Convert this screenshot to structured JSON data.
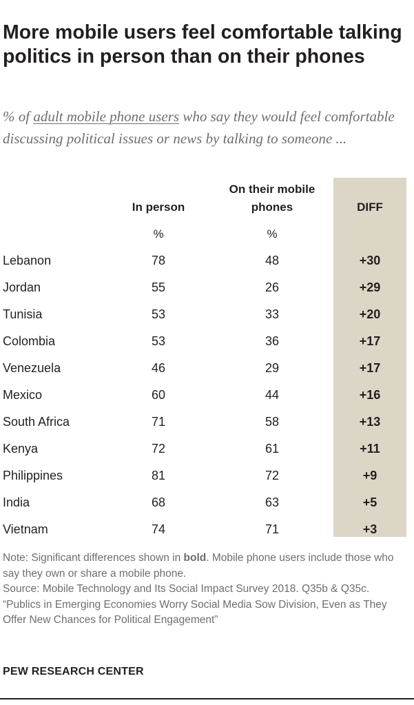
{
  "header": {
    "title": "More mobile users feel comfortable talking politics in person than on their phones",
    "subtitle_pre": "% of ",
    "subtitle_link": "adult mobile phone users",
    "subtitle_post": " who say they would feel comfortable discussing political issues or news by talking to someone ..."
  },
  "chart_data": {
    "type": "table",
    "columns": [
      "In person",
      "On their mobile phones",
      "DIFF"
    ],
    "units": [
      "%",
      "%"
    ],
    "rows": [
      {
        "country": "Lebanon",
        "in_person": 78,
        "phones": 48,
        "diff": "+30"
      },
      {
        "country": "Jordan",
        "in_person": 55,
        "phones": 26,
        "diff": "+29"
      },
      {
        "country": "Tunisia",
        "in_person": 53,
        "phones": 33,
        "diff": "+20"
      },
      {
        "country": "Colombia",
        "in_person": 53,
        "phones": 36,
        "diff": "+17"
      },
      {
        "country": "Venezuela",
        "in_person": 46,
        "phones": 29,
        "diff": "+17"
      },
      {
        "country": "Mexico",
        "in_person": 60,
        "phones": 44,
        "diff": "+16"
      },
      {
        "country": "South Africa",
        "in_person": 71,
        "phones": 58,
        "diff": "+13"
      },
      {
        "country": "Kenya",
        "in_person": 72,
        "phones": 61,
        "diff": "+11"
      },
      {
        "country": "Philippines",
        "in_person": 81,
        "phones": 72,
        "diff": "+9"
      },
      {
        "country": "India",
        "in_person": 68,
        "phones": 63,
        "diff": "+5"
      },
      {
        "country": "Vietnam",
        "in_person": 74,
        "phones": 71,
        "diff": "+3"
      }
    ]
  },
  "colors": {
    "diff_column_bg": "#dbd6c6",
    "text": "#231f20",
    "muted": "#6d6e71"
  },
  "footer": {
    "note_pre": "Note: Significant differences shown in ",
    "note_bold": "bold",
    "note_post": ". Mobile phone users include those who say they own or share a mobile phone.",
    "source": "Source: Mobile Technology and Its Social Impact Survey 2018. Q35b & Q35c.",
    "report": "“Publics in Emerging Economies Worry Social Media Sow Division, Even as They Offer New Chances for Political Engagement”",
    "logo": "PEW RESEARCH CENTER"
  }
}
